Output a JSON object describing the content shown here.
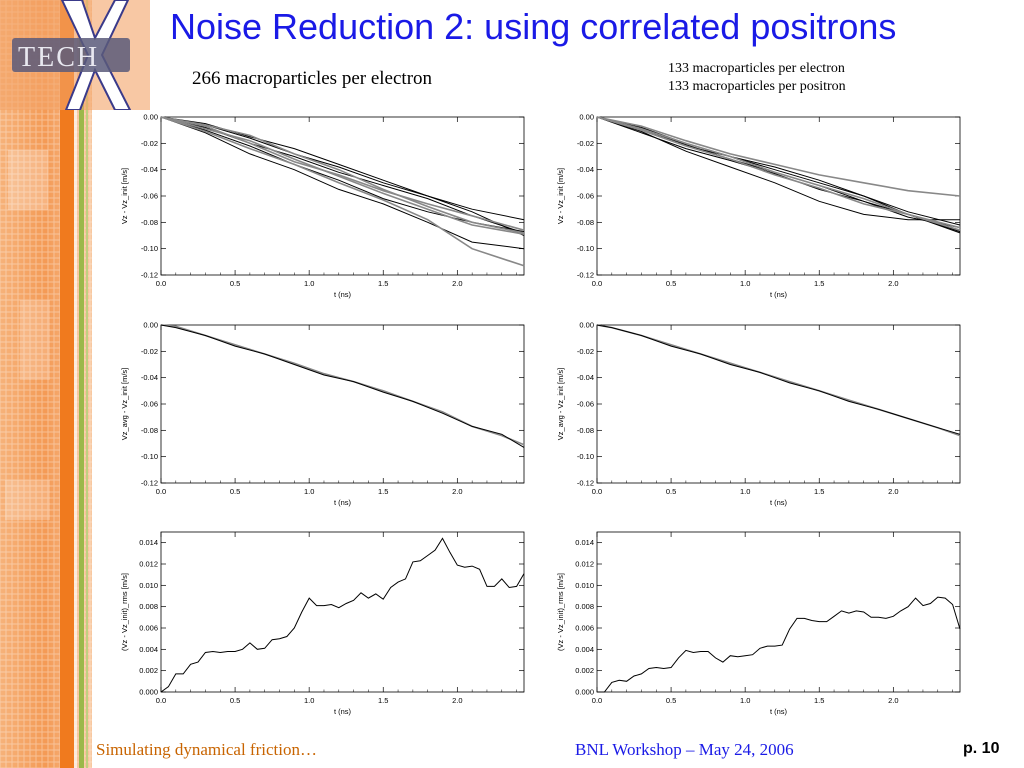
{
  "slide": {
    "title": "Noise Reduction 2: using correlated positrons",
    "caption_left": "266 macroparticles per electron",
    "caption_right_line1": "133 macroparticles per electron",
    "caption_right_line2": "133 macroparticles per positron",
    "logo_text": "TECH",
    "logo_mark": "X"
  },
  "footer": {
    "left": "Simulating dynamical friction…",
    "center": "BNL Workshop – May 24, 2006",
    "page": "p. 10"
  },
  "colors": {
    "title": "#1a1ae6",
    "footer_left": "#c86400",
    "footer_center": "#1a1ae6",
    "sidebar_orange": "#f07a1e"
  },
  "chart_data": [
    {
      "type": "line",
      "panel": "top-left",
      "xlabel": "t (ns)",
      "ylabel": "Vz - Vz_init [m/s]",
      "xlim": [
        0,
        2.45
      ],
      "ylim": [
        -0.12,
        0.0
      ],
      "xticks": [
        "0.0",
        "0.5",
        "1.0",
        "1.5",
        "2.0"
      ],
      "yticks": [
        "0.00",
        "-0.02",
        "-0.04",
        "-0.06",
        "-0.08",
        "-0.10",
        "-0.12"
      ],
      "series": [
        {
          "color": "#000000",
          "x": [
            0,
            0.3,
            0.6,
            0.9,
            1.2,
            1.5,
            1.8,
            2.1,
            2.45
          ],
          "y": [
            0,
            -0.008,
            -0.02,
            -0.03,
            -0.042,
            -0.052,
            -0.062,
            -0.075,
            -0.088
          ]
        },
        {
          "color": "#000000",
          "x": [
            0,
            0.3,
            0.6,
            0.9,
            1.2,
            1.5,
            1.8,
            2.1,
            2.45
          ],
          "y": [
            0,
            -0.01,
            -0.022,
            -0.036,
            -0.048,
            -0.062,
            -0.072,
            -0.08,
            -0.087
          ]
        },
        {
          "color": "#000000",
          "x": [
            0,
            0.3,
            0.6,
            0.9,
            1.2,
            1.5,
            1.8,
            2.1,
            2.45
          ],
          "y": [
            0,
            -0.006,
            -0.016,
            -0.028,
            -0.038,
            -0.05,
            -0.06,
            -0.072,
            -0.09
          ]
        },
        {
          "color": "#000000",
          "x": [
            0,
            0.3,
            0.6,
            0.9,
            1.2,
            1.5,
            1.8,
            2.1,
            2.45
          ],
          "y": [
            0,
            -0.012,
            -0.028,
            -0.04,
            -0.055,
            -0.066,
            -0.08,
            -0.095,
            -0.1
          ]
        },
        {
          "color": "#000000",
          "x": [
            0,
            0.3,
            0.6,
            0.9,
            1.2,
            1.5,
            1.8,
            2.1,
            2.45
          ],
          "y": [
            0,
            -0.005,
            -0.015,
            -0.024,
            -0.036,
            -0.048,
            -0.06,
            -0.07,
            -0.078
          ]
        },
        {
          "color": "#888888",
          "x": [
            0,
            0.3,
            0.6,
            0.9,
            1.2,
            1.5,
            1.8,
            2.1,
            2.45
          ],
          "y": [
            0,
            -0.009,
            -0.018,
            -0.032,
            -0.045,
            -0.058,
            -0.07,
            -0.082,
            -0.089
          ]
        },
        {
          "color": "#888888",
          "x": [
            0,
            0.3,
            0.6,
            0.9,
            1.2,
            1.5,
            1.8,
            2.1,
            2.45
          ],
          "y": [
            0,
            -0.007,
            -0.02,
            -0.034,
            -0.044,
            -0.056,
            -0.066,
            -0.075,
            -0.086
          ]
        },
        {
          "color": "#888888",
          "x": [
            0,
            0.3,
            0.6,
            0.9,
            1.2,
            1.5,
            1.8,
            2.1,
            2.45
          ],
          "y": [
            0,
            -0.011,
            -0.024,
            -0.036,
            -0.05,
            -0.063,
            -0.078,
            -0.1,
            -0.113
          ]
        },
        {
          "color": "#888888",
          "x": [
            0,
            0.3,
            0.6,
            0.9,
            1.2,
            1.5,
            1.8,
            2.1,
            2.45
          ],
          "y": [
            0,
            -0.006,
            -0.014,
            -0.028,
            -0.04,
            -0.055,
            -0.068,
            -0.08,
            -0.088
          ]
        }
      ]
    },
    {
      "type": "line",
      "panel": "top-right",
      "xlabel": "t (ns)",
      "ylabel": "Vz - Vz_init [m/s]",
      "xlim": [
        0,
        2.45
      ],
      "ylim": [
        -0.12,
        0.0
      ],
      "xticks": [
        "0.0",
        "0.5",
        "1.0",
        "1.5",
        "2.0"
      ],
      "yticks": [
        "0.00",
        "-0.02",
        "-0.04",
        "-0.06",
        "-0.08",
        "-0.10",
        "-0.12"
      ],
      "series": [
        {
          "color": "#000000",
          "x": [
            0,
            0.3,
            0.6,
            0.9,
            1.2,
            1.5,
            1.8,
            2.1,
            2.45
          ],
          "y": [
            0,
            -0.01,
            -0.022,
            -0.03,
            -0.04,
            -0.05,
            -0.06,
            -0.074,
            -0.087
          ]
        },
        {
          "color": "#000000",
          "x": [
            0,
            0.3,
            0.6,
            0.9,
            1.2,
            1.5,
            1.8,
            2.1,
            2.45
          ],
          "y": [
            0,
            -0.012,
            -0.024,
            -0.033,
            -0.043,
            -0.055,
            -0.064,
            -0.076,
            -0.084
          ]
        },
        {
          "color": "#000000",
          "x": [
            0,
            0.3,
            0.6,
            0.9,
            1.2,
            1.5,
            1.8,
            2.1,
            2.45
          ],
          "y": [
            0,
            -0.008,
            -0.02,
            -0.03,
            -0.038,
            -0.048,
            -0.06,
            -0.072,
            -0.082
          ]
        },
        {
          "color": "#000000",
          "x": [
            0,
            0.3,
            0.6,
            0.9,
            1.2,
            1.5,
            1.8,
            2.1,
            2.45
          ],
          "y": [
            0,
            -0.011,
            -0.026,
            -0.038,
            -0.05,
            -0.064,
            -0.074,
            -0.078,
            -0.078
          ]
        },
        {
          "color": "#000000",
          "x": [
            0,
            0.3,
            0.6,
            0.9,
            1.2,
            1.5,
            1.8,
            2.1,
            2.45
          ],
          "y": [
            0,
            -0.009,
            -0.021,
            -0.032,
            -0.042,
            -0.052,
            -0.064,
            -0.074,
            -0.088
          ]
        },
        {
          "color": "#888888",
          "x": [
            0,
            0.3,
            0.6,
            0.9,
            1.2,
            1.5,
            1.8,
            2.1,
            2.45
          ],
          "y": [
            0,
            -0.007,
            -0.018,
            -0.028,
            -0.036,
            -0.044,
            -0.05,
            -0.056,
            -0.06
          ]
        },
        {
          "color": "#888888",
          "x": [
            0,
            0.3,
            0.6,
            0.9,
            1.2,
            1.5,
            1.8,
            2.1,
            2.45
          ],
          "y": [
            0,
            -0.01,
            -0.022,
            -0.032,
            -0.044,
            -0.054,
            -0.066,
            -0.074,
            -0.086
          ]
        },
        {
          "color": "#888888",
          "x": [
            0,
            0.3,
            0.6,
            0.9,
            1.2,
            1.5,
            1.8,
            2.1,
            2.45
          ],
          "y": [
            0,
            -0.009,
            -0.02,
            -0.03,
            -0.042,
            -0.052,
            -0.062,
            -0.074,
            -0.084
          ]
        }
      ]
    },
    {
      "type": "line",
      "panel": "middle-left",
      "xlabel": "t (ns)",
      "ylabel": "Vz_avg - Vz_init [m/s]",
      "xlim": [
        0,
        2.45
      ],
      "ylim": [
        -0.12,
        0.0
      ],
      "xticks": [
        "0.0",
        "0.5",
        "1.0",
        "1.5",
        "2.0"
      ],
      "yticks": [
        "0.00",
        "-0.02",
        "-0.04",
        "-0.06",
        "-0.08",
        "-0.10",
        "-0.12"
      ],
      "series": [
        {
          "color": "#888888",
          "x": [
            0,
            0.1,
            0.3,
            0.5,
            0.7,
            0.9,
            1.1,
            1.3,
            1.5,
            1.7,
            1.9,
            2.1,
            2.3,
            2.45
          ],
          "y": [
            0,
            -0.001,
            -0.008,
            -0.015,
            -0.022,
            -0.029,
            -0.037,
            -0.043,
            -0.05,
            -0.058,
            -0.066,
            -0.077,
            -0.084,
            -0.091
          ]
        },
        {
          "color": "#000000",
          "x": [
            0,
            0.1,
            0.3,
            0.5,
            0.7,
            0.9,
            1.1,
            1.3,
            1.5,
            1.7,
            1.9,
            2.1,
            2.3,
            2.45
          ],
          "y": [
            0,
            -0.002,
            -0.008,
            -0.016,
            -0.022,
            -0.03,
            -0.038,
            -0.043,
            -0.051,
            -0.058,
            -0.067,
            -0.077,
            -0.083,
            -0.093
          ]
        }
      ]
    },
    {
      "type": "line",
      "panel": "middle-right",
      "xlabel": "t (ns)",
      "ylabel": "Vz_avg - Vz_init [m/s]",
      "xlim": [
        0,
        2.45
      ],
      "ylim": [
        -0.12,
        0.0
      ],
      "xticks": [
        "0.0",
        "0.5",
        "1.0",
        "1.5",
        "2.0"
      ],
      "yticks": [
        "0.00",
        "-0.02",
        "-0.04",
        "-0.06",
        "-0.08",
        "-0.10",
        "-0.12"
      ],
      "series": [
        {
          "color": "#888888",
          "x": [
            0,
            0.1,
            0.3,
            0.5,
            0.7,
            0.9,
            1.1,
            1.3,
            1.5,
            1.7,
            1.9,
            2.1,
            2.3,
            2.45
          ],
          "y": [
            0,
            -0.002,
            -0.008,
            -0.015,
            -0.022,
            -0.029,
            -0.036,
            -0.043,
            -0.05,
            -0.057,
            -0.064,
            -0.071,
            -0.078,
            -0.084
          ]
        },
        {
          "color": "#000000",
          "x": [
            0,
            0.1,
            0.3,
            0.5,
            0.7,
            0.9,
            1.1,
            1.3,
            1.5,
            1.7,
            1.9,
            2.1,
            2.3,
            2.45
          ],
          "y": [
            0,
            -0.002,
            -0.008,
            -0.016,
            -0.022,
            -0.03,
            -0.036,
            -0.044,
            -0.05,
            -0.058,
            -0.064,
            -0.071,
            -0.078,
            -0.083
          ]
        }
      ]
    },
    {
      "type": "line",
      "panel": "bottom-left",
      "xlabel": "t (ns)",
      "ylabel": "(Vz - Vz_init)_rms [m/s]",
      "xlim": [
        0,
        2.45
      ],
      "ylim": [
        0,
        0.015
      ],
      "xticks": [
        "0.0",
        "0.5",
        "1.0",
        "1.5",
        "2.0"
      ],
      "yticks": [
        "0.000",
        "0.002",
        "0.004",
        "0.006",
        "0.008",
        "0.010",
        "0.012",
        "0.014"
      ],
      "series": [
        {
          "color": "#000000",
          "x": [
            0,
            0.05,
            0.1,
            0.15,
            0.2,
            0.25,
            0.3,
            0.35,
            0.4,
            0.45,
            0.5,
            0.55,
            0.6,
            0.65,
            0.7,
            0.75,
            0.8,
            0.85,
            0.9,
            0.95,
            1.0,
            1.05,
            1.1,
            1.15,
            1.2,
            1.25,
            1.3,
            1.35,
            1.4,
            1.45,
            1.5,
            1.55,
            1.6,
            1.65,
            1.7,
            1.75,
            1.8,
            1.85,
            1.9,
            1.95,
            2.0,
            2.05,
            2.1,
            2.15,
            2.2,
            2.25,
            2.3,
            2.35,
            2.4,
            2.45
          ],
          "y": [
            0,
            0.0005,
            0.0017,
            0.0017,
            0.0026,
            0.0028,
            0.0037,
            0.0038,
            0.0037,
            0.0038,
            0.0038,
            0.004,
            0.0046,
            0.004,
            0.0041,
            0.0049,
            0.005,
            0.0052,
            0.006,
            0.0075,
            0.0088,
            0.0081,
            0.0081,
            0.0082,
            0.0079,
            0.0083,
            0.0086,
            0.0093,
            0.0088,
            0.0092,
            0.0087,
            0.0098,
            0.0103,
            0.0106,
            0.0122,
            0.0123,
            0.0128,
            0.0133,
            0.0144,
            0.0131,
            0.0119,
            0.0117,
            0.0118,
            0.0115,
            0.0099,
            0.0099,
            0.0106,
            0.0098,
            0.0099,
            0.0111
          ]
        }
      ]
    },
    {
      "type": "line",
      "panel": "bottom-right",
      "xlabel": "t (ns)",
      "ylabel": "(Vz - Vz_init)_rms [m/s]",
      "xlim": [
        0,
        2.45
      ],
      "ylim": [
        0,
        0.015
      ],
      "xticks": [
        "0.0",
        "0.5",
        "1.0",
        "1.5",
        "2.0"
      ],
      "yticks": [
        "0.000",
        "0.002",
        "0.004",
        "0.006",
        "0.008",
        "0.010",
        "0.012",
        "0.014"
      ],
      "series": [
        {
          "color": "#000000",
          "x": [
            0,
            0.05,
            0.1,
            0.15,
            0.2,
            0.25,
            0.3,
            0.35,
            0.4,
            0.45,
            0.5,
            0.55,
            0.6,
            0.65,
            0.7,
            0.75,
            0.8,
            0.85,
            0.9,
            0.95,
            1.0,
            1.05,
            1.1,
            1.15,
            1.2,
            1.25,
            1.3,
            1.35,
            1.4,
            1.45,
            1.5,
            1.55,
            1.6,
            1.65,
            1.7,
            1.75,
            1.8,
            1.85,
            1.9,
            1.95,
            2.0,
            2.05,
            2.1,
            2.15,
            2.2,
            2.25,
            2.3,
            2.35,
            2.4,
            2.45
          ],
          "y": [
            0,
            0,
            0.0009,
            0.0011,
            0.001,
            0.0015,
            0.0017,
            0.0022,
            0.0023,
            0.0022,
            0.0023,
            0.0032,
            0.0039,
            0.0037,
            0.0038,
            0.0038,
            0.0032,
            0.0028,
            0.0034,
            0.0033,
            0.0034,
            0.0035,
            0.0041,
            0.0043,
            0.0043,
            0.0044,
            0.0059,
            0.0069,
            0.0069,
            0.0067,
            0.0066,
            0.0066,
            0.0071,
            0.0076,
            0.0074,
            0.0076,
            0.0075,
            0.007,
            0.007,
            0.0069,
            0.0071,
            0.0076,
            0.008,
            0.0088,
            0.0081,
            0.0083,
            0.0089,
            0.0088,
            0.0082,
            0.0059
          ]
        }
      ]
    }
  ]
}
